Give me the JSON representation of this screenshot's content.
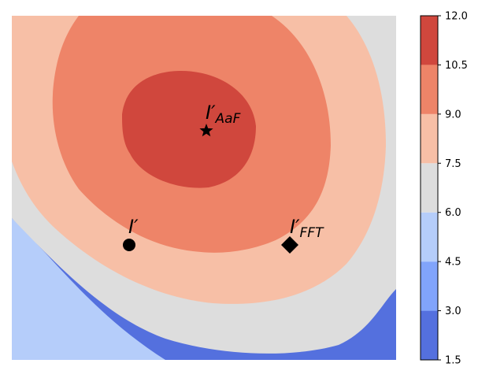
{
  "chart_data": {
    "type": "contour",
    "title": "",
    "xlabel": "",
    "ylabel": "",
    "axes_visible": false,
    "colormap": "coolwarm",
    "colorbar": {
      "position": "right",
      "ticks": [
        "1.5",
        "3.0",
        "4.5",
        "6.0",
        "7.5",
        "9.0",
        "10.5",
        "12.0"
      ],
      "levels": [
        1.5,
        3.0,
        4.5,
        6.0,
        7.5,
        9.0,
        10.5,
        12.0
      ],
      "colors": [
        "#5470de",
        "#81a4fb",
        "#b5cdfa",
        "#dddddd",
        "#f7bfa6",
        "#ee8468",
        "#d0473d"
      ]
    },
    "points": [
      {
        "name": "I′_AaF",
        "label_main": "I′",
        "label_sub": "AaF",
        "marker": "star"
      },
      {
        "name": "I′",
        "label_main": "I′",
        "label_sub": "",
        "marker": "circle"
      },
      {
        "name": "I′_FFT",
        "label_main": "I′",
        "label_sub": "FFT",
        "marker": "diamond"
      }
    ]
  }
}
